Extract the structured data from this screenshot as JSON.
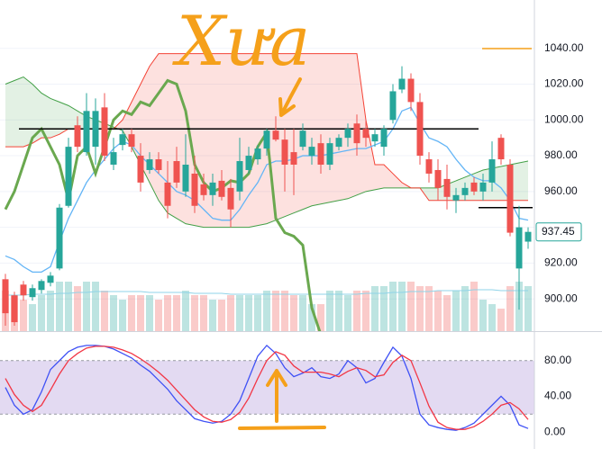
{
  "chart_data": [
    {
      "type": "candlestick",
      "annotation": "Xưa",
      "open": [
        911,
        902,
        908,
        901,
        905,
        909,
        917,
        952,
        997,
        982,
        985,
        1007,
        975,
        986,
        992,
        980,
        972,
        978,
        965,
        977,
        960,
        970,
        964,
        958,
        966,
        962,
        960,
        972,
        978,
        984,
        994,
        989,
        982,
        985,
        980,
        987,
        975,
        985,
        990,
        998,
        995,
        988,
        985,
        1000,
        1017,
        1023,
        1010,
        978,
        972,
        967,
        955,
        958,
        965,
        960,
        965,
        990,
        975,
        917,
        932
      ],
      "high": [
        914,
        904,
        910,
        908,
        911,
        915,
        953,
        990,
        1002,
        1015,
        1012,
        1015,
        990,
        995,
        995,
        987,
        982,
        982,
        977,
        985,
        992,
        980,
        970,
        970,
        972,
        967,
        990,
        985,
        986,
        995,
        1002,
        995,
        995,
        998,
        990,
        992,
        990,
        992,
        998,
        1003,
        1000,
        995,
        997,
        1020,
        1030,
        1026,
        1015,
        982,
        978,
        975,
        962,
        965,
        968,
        970,
        988,
        992,
        978,
        952,
        940
      ],
      "low": [
        885,
        885,
        899,
        899,
        903,
        907,
        916,
        951,
        982,
        980,
        975,
        977,
        972,
        983,
        982,
        960,
        970,
        970,
        945,
        962,
        957,
        948,
        955,
        952,
        955,
        940,
        955,
        970,
        975,
        980,
        988,
        960,
        958,
        983,
        975,
        970,
        972,
        983,
        985,
        980,
        985,
        985,
        980,
        998,
        1015,
        1005,
        975,
        965,
        955,
        950,
        948,
        955,
        958,
        955,
        960,
        975,
        935,
        894,
        928
      ],
      "close": [
        892,
        887,
        902,
        906,
        910,
        913,
        951,
        985,
        985,
        1005,
        1005,
        980,
        982,
        992,
        985,
        965,
        978,
        972,
        952,
        965,
        975,
        952,
        958,
        965,
        957,
        950,
        977,
        980,
        984,
        994,
        989,
        975,
        975,
        994,
        985,
        975,
        987,
        990,
        995,
        987,
        990,
        992,
        995,
        1016,
        1023,
        1010,
        980,
        970,
        962,
        957,
        958,
        962,
        960,
        965,
        978,
        978,
        937,
        940,
        937.45
      ],
      "volume": [
        45,
        40,
        35,
        30,
        40,
        45,
        55,
        55,
        50,
        55,
        55,
        45,
        40,
        35,
        40,
        40,
        40,
        35,
        40,
        40,
        45,
        40,
        40,
        35,
        35,
        40,
        40,
        40,
        40,
        45,
        45,
        45,
        40,
        40,
        30,
        30,
        45,
        45,
        40,
        45,
        45,
        50,
        50,
        55,
        55,
        55,
        50,
        50,
        45,
        40,
        45,
        50,
        55,
        35,
        30,
        25,
        50,
        55,
        50
      ],
      "volume_ma": {
        "color": "#8fd3e8",
        "values": [
          40,
          40,
          40,
          41,
          41,
          41,
          42,
          42,
          43,
          43,
          44,
          44,
          44,
          44,
          44,
          44,
          43,
          43,
          43,
          43,
          43,
          42,
          42,
          42,
          42,
          41,
          41,
          41,
          41,
          41,
          41,
          41,
          41,
          41,
          41,
          41,
          41,
          41,
          41,
          41,
          42,
          42,
          42,
          43,
          43,
          44,
          44,
          44,
          45,
          45,
          45,
          45,
          46,
          46,
          46,
          45,
          45,
          45,
          45
        ]
      },
      "volume_lim": [
        0,
        100
      ],
      "up_color": "#26a69a",
      "down_color": "#ef5350",
      "cloud": {
        "span_a": [
          1020,
          1022,
          1024,
          1020,
          1015,
          1012,
          1010,
          1008,
          1005,
          1002,
          1000,
          998,
          996,
          994,
          985,
          975,
          965,
          955,
          948,
          945,
          942,
          941,
          940,
          940,
          940,
          940,
          940,
          940,
          941,
          942,
          944,
          946,
          948,
          950,
          952,
          953,
          954,
          955,
          956,
          958,
          960,
          961,
          962,
          962,
          962,
          962,
          962,
          962,
          962,
          964,
          966,
          968,
          970,
          972,
          973,
          974,
          975,
          976,
          977
        ],
        "span_b": [
          985,
          985,
          985,
          987,
          990,
          990,
          992,
          995,
          995,
          995,
          995,
          995,
          995,
          1000,
          1010,
          1020,
          1030,
          1037,
          1037,
          1037,
          1037,
          1037,
          1037,
          1037,
          1037,
          1037,
          1037,
          1037,
          1037,
          1037,
          1037,
          1037,
          1037,
          1037,
          1037,
          1037,
          1037,
          1037,
          1037,
          1037,
          1000,
          975,
          975,
          970,
          965,
          962,
          962,
          955,
          955,
          955,
          955,
          955,
          955,
          955,
          955,
          955,
          955,
          955,
          955
        ],
        "a_color": "#43a047",
        "b_color": "#f44336",
        "up_fill": "rgba(67,160,71,0.15)",
        "down_fill": "rgba(244,67,54,0.16)"
      },
      "overlays": [
        {
          "color": "#64b5f6",
          "width": 1.3,
          "values": [
            924,
            922,
            918,
            915,
            915,
            918,
            932,
            945,
            955,
            965,
            972,
            978,
            984,
            988,
            986,
            980,
            975,
            970,
            965,
            960,
            958,
            955,
            950,
            945,
            944,
            944,
            950,
            958,
            965,
            975,
            977,
            977,
            978,
            980,
            980,
            980,
            981,
            982,
            983,
            984,
            984,
            986,
            988,
            995,
            1005,
            1007,
            998,
            990,
            988,
            985,
            978,
            972,
            968,
            966,
            966,
            962,
            955,
            945,
            944
          ]
        },
        {
          "color": "#6aa84f",
          "width": 3,
          "values": [
            950,
            960,
            975,
            990,
            995,
            985,
            975,
            955,
            980,
            985,
            970,
            985,
            1000,
            1005,
            1003,
            1010,
            1008,
            1015,
            1022,
            1020,
            1005,
            975,
            965,
            960,
            962,
            966,
            965,
            970,
            985,
            993,
            945,
            937,
            935,
            930,
            895,
            880,
            null,
            null,
            null,
            null,
            null,
            null,
            null,
            null,
            null,
            null,
            null,
            null,
            null,
            null,
            null,
            null,
            null,
            null,
            null,
            null,
            null,
            null,
            null
          ]
        }
      ],
      "levels": [
        {
          "value": 995,
          "from": 2,
          "to": 52
        },
        {
          "value": 951,
          "from": 53,
          "to": 58
        }
      ],
      "level_color": "#000000",
      "ylim": [
        882,
        1067
      ],
      "yticks": [
        {
          "value": 900,
          "label": "900.00"
        },
        {
          "value": 920,
          "label": "920.00"
        },
        {
          "value": 940,
          "label": "940.00"
        },
        {
          "value": 960,
          "label": "960.00"
        },
        {
          "value": 980,
          "label": "980.00"
        },
        {
          "value": 1000,
          "label": "1000.00"
        },
        {
          "value": 1020,
          "label": "1020.00"
        },
        {
          "value": 1040,
          "label": "1040.00"
        }
      ],
      "grid": true
    },
    {
      "type": "line",
      "series": [
        {
          "color": "#3f51f5",
          "values": [
            50,
            30,
            20,
            25,
            45,
            70,
            80,
            90,
            95,
            97,
            97,
            96,
            93,
            88,
            83,
            75,
            68,
            58,
            48,
            35,
            25,
            15,
            12,
            10,
            12,
            20,
            35,
            60,
            85,
            97,
            88,
            72,
            62,
            66,
            72,
            62,
            60,
            65,
            80,
            72,
            55,
            60,
            78,
            95,
            85,
            60,
            20,
            8,
            5,
            3,
            2,
            5,
            10,
            20,
            30,
            40,
            30,
            8,
            4
          ]
        },
        {
          "color": "#f23645",
          "values": [
            60,
            42,
            30,
            23,
            30,
            47,
            65,
            80,
            88,
            94,
            96,
            96,
            95,
            92,
            88,
            82,
            75,
            67,
            58,
            47,
            36,
            25,
            17,
            12,
            11,
            14,
            22,
            38,
            60,
            80,
            90,
            86,
            74,
            67,
            67,
            67,
            65,
            62,
            68,
            72,
            69,
            62,
            64,
            78,
            86,
            80,
            55,
            29,
            11,
            5,
            3,
            3,
            6,
            12,
            20,
            30,
            33,
            26,
            14
          ]
        }
      ],
      "band": [
        20,
        80
      ],
      "band_color": "rgba(126,87,194,0.22)",
      "ylim": [
        -19,
        111
      ],
      "yticks": [
        {
          "value": 0,
          "label": "0.00"
        },
        {
          "value": 40,
          "label": "40.00"
        },
        {
          "value": 80,
          "label": "80.00"
        }
      ]
    }
  ]
}
